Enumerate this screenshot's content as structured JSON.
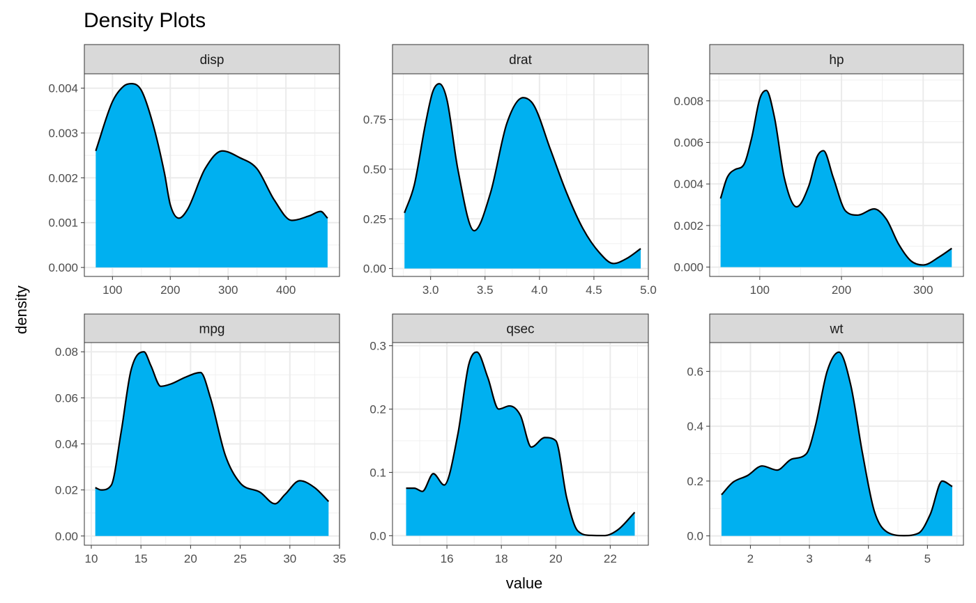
{
  "chart_data": {
    "type": "area",
    "title": "Density Plots",
    "xlabel": "value",
    "ylabel": "density",
    "fill_color": "#00b0f0",
    "line_color": "#000000",
    "strip_color": "#d9d9d9",
    "grid": true,
    "panels": [
      {
        "label": "disp",
        "xlim": [
          51.4,
          492.6
        ],
        "ylim": [
          -0.0002,
          0.00432
        ],
        "xticks": [
          100,
          200,
          300,
          400
        ],
        "xtick_labels": [
          "100",
          "200",
          "300",
          "400"
        ],
        "yticks": [
          0,
          0.001,
          0.002,
          0.003,
          0.004
        ],
        "ytick_labels": [
          "0.000",
          "0.001",
          "0.002",
          "0.003",
          "0.004"
        ],
        "x": [
          71.1,
          100,
          120,
          133,
          150,
          170,
          190,
          200,
          215,
          230,
          260,
          290,
          320,
          350,
          380,
          410,
          440,
          460,
          472
        ],
        "y": [
          0.0026,
          0.0037,
          0.00405,
          0.0041,
          0.00395,
          0.0032,
          0.0021,
          0.0014,
          0.0011,
          0.0013,
          0.0022,
          0.0026,
          0.00245,
          0.0022,
          0.0015,
          0.00105,
          0.00115,
          0.00125,
          0.0011
        ]
      },
      {
        "label": "drat",
        "xlim": [
          2.65,
          5.0
        ],
        "ylim": [
          -0.04,
          0.98
        ],
        "xticks": [
          3.0,
          3.5,
          4.0,
          4.5,
          5.0
        ],
        "xtick_labels": [
          "3.0",
          "3.5",
          "4.0",
          "4.5",
          "5.0"
        ],
        "yticks": [
          0,
          0.25,
          0.5,
          0.75
        ],
        "ytick_labels": [
          "0.00",
          "0.25",
          "0.50",
          "0.75"
        ],
        "x": [
          2.76,
          2.85,
          2.95,
          3.02,
          3.08,
          3.15,
          3.25,
          3.4,
          3.55,
          3.7,
          3.85,
          3.95,
          4.1,
          4.25,
          4.4,
          4.55,
          4.68,
          4.8,
          4.93
        ],
        "y": [
          0.28,
          0.42,
          0.72,
          0.89,
          0.93,
          0.85,
          0.5,
          0.19,
          0.38,
          0.73,
          0.86,
          0.82,
          0.6,
          0.38,
          0.2,
          0.08,
          0.025,
          0.05,
          0.1
        ]
      },
      {
        "label": "hp",
        "xlim": [
          38.7,
          349.3
        ],
        "ylim": [
          -0.00045,
          0.0093
        ],
        "xticks": [
          100,
          200,
          300
        ],
        "xtick_labels": [
          "100",
          "200",
          "300"
        ],
        "yticks": [
          0,
          0.002,
          0.004,
          0.006,
          0.008
        ],
        "ytick_labels": [
          "0.000",
          "0.002",
          "0.004",
          "0.006",
          "0.008"
        ],
        "x": [
          52,
          60,
          70,
          80,
          90,
          100,
          108,
          118,
          130,
          145,
          160,
          170,
          178,
          190,
          205,
          220,
          240,
          255,
          270,
          285,
          300,
          320,
          335
        ],
        "y": [
          0.0033,
          0.0043,
          0.0047,
          0.0049,
          0.0062,
          0.0081,
          0.0085,
          0.0072,
          0.0043,
          0.0029,
          0.0039,
          0.0053,
          0.0056,
          0.0043,
          0.0027,
          0.0025,
          0.0028,
          0.0023,
          0.0011,
          0.0003,
          0.0001,
          0.0005,
          0.0009
        ]
      },
      {
        "label": "mpg",
        "xlim": [
          9.3,
          35.0
        ],
        "ylim": [
          -0.004,
          0.084
        ],
        "xticks": [
          10,
          15,
          20,
          25,
          30,
          35
        ],
        "xtick_labels": [
          "10",
          "15",
          "20",
          "25",
          "30",
          "35"
        ],
        "yticks": [
          0,
          0.02,
          0.04,
          0.06,
          0.08
        ],
        "ytick_labels": [
          "0.00",
          "0.02",
          "0.04",
          "0.06",
          "0.08"
        ],
        "x": [
          10.4,
          11.0,
          12.0,
          13.0,
          14.0,
          15.3,
          16.0,
          17.0,
          18.0,
          19.5,
          21.0,
          22.0,
          23.5,
          25.0,
          27.0,
          28.5,
          29.5,
          31.0,
          32.5,
          33.9
        ],
        "y": [
          0.021,
          0.02,
          0.022,
          0.045,
          0.072,
          0.08,
          0.074,
          0.065,
          0.066,
          0.069,
          0.071,
          0.06,
          0.035,
          0.023,
          0.019,
          0.014,
          0.018,
          0.024,
          0.021,
          0.015
        ]
      },
      {
        "label": "qsec",
        "xlim": [
          14.0,
          23.4
        ],
        "ylim": [
          -0.015,
          0.305
        ],
        "xticks": [
          16,
          18,
          20,
          22
        ],
        "xtick_labels": [
          "16",
          "18",
          "20",
          "22"
        ],
        "yticks": [
          0,
          0.1,
          0.2,
          0.3
        ],
        "ytick_labels": [
          "0.0",
          "0.1",
          "0.2",
          "0.3"
        ],
        "x": [
          14.5,
          14.8,
          15.1,
          15.5,
          15.9,
          16.4,
          16.8,
          17.1,
          17.5,
          17.9,
          18.3,
          18.7,
          19.1,
          19.6,
          20.0,
          20.4,
          20.8,
          21.3,
          21.8,
          22.3,
          22.9
        ],
        "y": [
          0.075,
          0.075,
          0.07,
          0.098,
          0.08,
          0.16,
          0.27,
          0.29,
          0.25,
          0.2,
          0.205,
          0.19,
          0.14,
          0.155,
          0.15,
          0.06,
          0.008,
          0.0005,
          0.0002,
          0.01,
          0.037
        ]
      },
      {
        "label": "wt",
        "xlim": [
          1.31,
          5.61
        ],
        "ylim": [
          -0.034,
          0.705
        ],
        "xticks": [
          2,
          3,
          4,
          5
        ],
        "xtick_labels": [
          "2",
          "3",
          "4",
          "5"
        ],
        "yticks": [
          0,
          0.2,
          0.4,
          0.6
        ],
        "ytick_labels": [
          "0.0",
          "0.2",
          "0.4",
          "0.6"
        ],
        "x": [
          1.51,
          1.7,
          1.95,
          2.2,
          2.45,
          2.7,
          2.95,
          3.1,
          3.3,
          3.5,
          3.7,
          3.9,
          4.1,
          4.35,
          4.6,
          4.85,
          5.05,
          5.25,
          5.42
        ],
        "y": [
          0.15,
          0.195,
          0.22,
          0.255,
          0.24,
          0.28,
          0.3,
          0.4,
          0.6,
          0.67,
          0.55,
          0.3,
          0.09,
          0.01,
          0.001,
          0.01,
          0.08,
          0.2,
          0.18
        ]
      }
    ]
  }
}
